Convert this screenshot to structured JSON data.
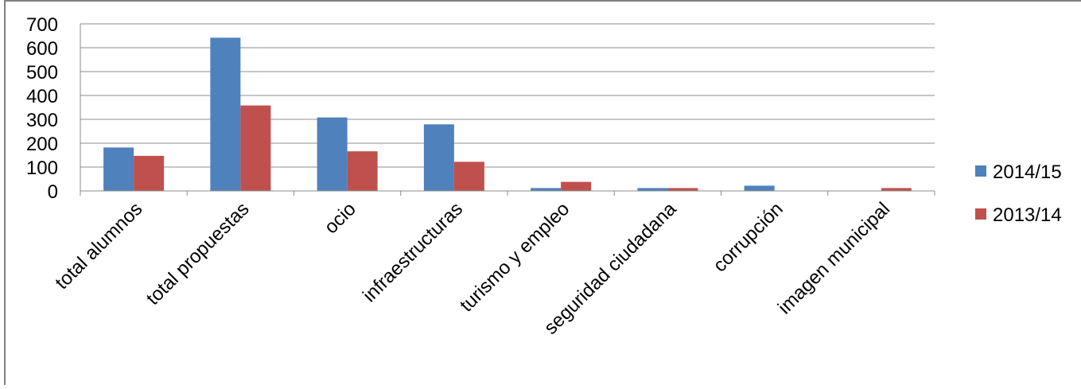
{
  "chart_data": {
    "type": "bar",
    "title": "",
    "xlabel": "",
    "ylabel": "",
    "ylim": [
      0,
      700
    ],
    "yticks": [
      "0",
      "100",
      "200",
      "300",
      "400",
      "500",
      "600",
      "700"
    ],
    "categories": [
      "total alumnos",
      "total propuestas",
      "ocio",
      "infraestructuras",
      "turismo y empleo",
      "seguridad ciudadana",
      "corrupción",
      "imagen municipal"
    ],
    "series": [
      {
        "name": "2014/15",
        "color": "#4F81BD",
        "values": [
          182,
          642,
          308,
          279,
          12,
          12,
          22,
          0
        ]
      },
      {
        "name": "2013/14",
        "color": "#C0504D",
        "values": [
          147,
          358,
          166,
          122,
          38,
          12,
          0,
          12
        ]
      }
    ],
    "grid": true,
    "legend": "right"
  }
}
